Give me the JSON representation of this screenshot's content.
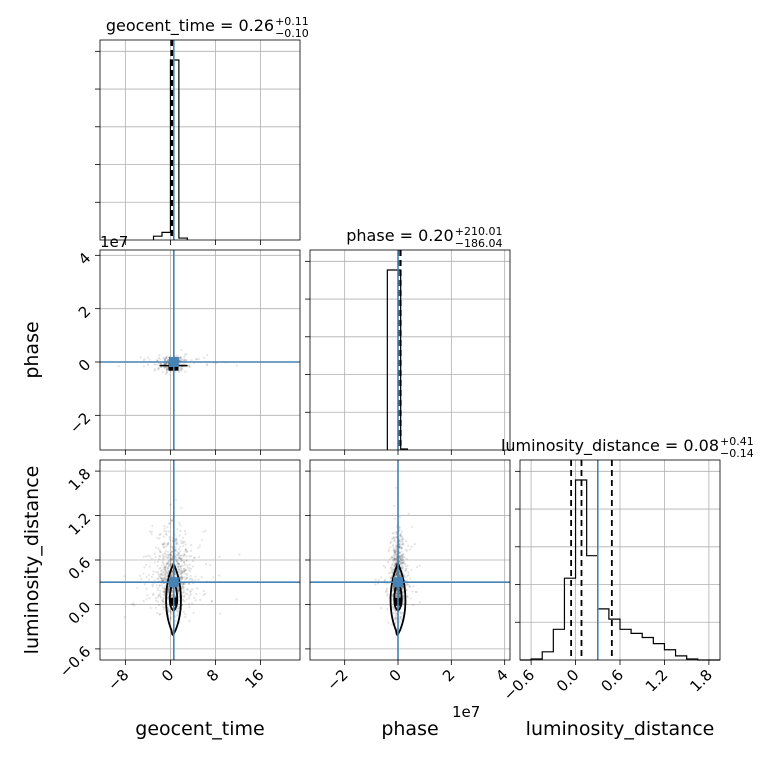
{
  "chart_data": {
    "type": "corner",
    "parameters": [
      "geocent_time",
      "phase",
      "luminosity_distance"
    ],
    "truths": {
      "geocent_time": 0.6,
      "phase": 0.0,
      "luminosity_distance": 0.3
    },
    "titles": [
      {
        "param": "geocent_time",
        "text": "geocent_time = 0.26",
        "plus": "+0.11",
        "minus": "−0.10"
      },
      {
        "param": "phase",
        "text": "phase = 0.20",
        "plus": "+210.01",
        "minus": "−186.04"
      },
      {
        "param": "luminosity_distance",
        "text": "luminosity_distance = 0.08",
        "plus": "+0.41",
        "minus": "−0.14"
      }
    ],
    "offset_text": "1e7",
    "ranges": {
      "geocent_time": [
        -12.5,
        23.0
      ],
      "phase": [
        -3.3,
        4.2
      ],
      "luminosity_distance": [
        -0.75,
        1.95
      ]
    },
    "ticks": {
      "geocent_time": [
        -8,
        0,
        8,
        16
      ],
      "phase": [
        -2,
        0,
        2,
        4
      ],
      "luminosity_distance": [
        -0.6,
        0.0,
        0.6,
        1.2,
        1.8
      ]
    },
    "tick_labels": {
      "geocent_time": [
        "−8",
        "0",
        "8",
        "16"
      ],
      "phase": [
        "−2",
        "0",
        "2",
        "4"
      ],
      "luminosity_distance": [
        "−0.6",
        "0.0",
        "0.6",
        "1.2",
        "1.8"
      ]
    },
    "marginals": {
      "geocent_time": {
        "bin_edges": [
          -3.0,
          -1.5,
          0.0,
          1.5,
          3.0
        ],
        "counts": [
          0.02,
          0.04,
          0.94,
          0.01
        ],
        "quantile_lines": [
          0.26,
          0.16,
          0.37
        ]
      },
      "phase": {
        "bin_edges": [
          -0.4,
          -0.15,
          0.1,
          0.35
        ],
        "counts": [
          0.9,
          0.9,
          0.005
        ],
        "quantile_lines": [
          0.02,
          0.1
        ]
      },
      "luminosity_distance": {
        "bin_edges": [
          -0.75,
          -0.6,
          -0.45,
          -0.3,
          -0.15,
          0.0,
          0.15,
          0.3,
          0.45,
          0.6,
          0.75,
          0.9,
          1.05,
          1.2,
          1.35,
          1.5,
          1.65,
          1.8,
          1.95
        ],
        "counts": [
          0.0,
          0.005,
          0.04,
          0.15,
          0.4,
          0.88,
          0.51,
          0.25,
          0.2,
          0.15,
          0.13,
          0.11,
          0.08,
          0.05,
          0.02,
          0.005,
          0.0,
          0.0
        ],
        "quantile_lines": [
          -0.06,
          0.08,
          0.49
        ]
      }
    },
    "grid": true
  }
}
